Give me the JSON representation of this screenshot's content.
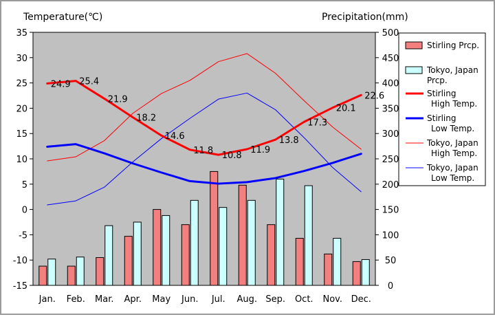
{
  "chart_data": {
    "type": "bar+line",
    "categories": [
      "Jan.",
      "Feb.",
      "Mar.",
      "Apr.",
      "May",
      "Jun.",
      "Jul.",
      "Aug.",
      "Sep.",
      "Oct.",
      "Nov.",
      "Dec."
    ],
    "left_axis": {
      "label": "Temperature(℃)",
      "range": [
        -15,
        35
      ],
      "ticks": [
        -15,
        -10,
        -5,
        0,
        5,
        10,
        15,
        20,
        25,
        30,
        35
      ]
    },
    "right_axis": {
      "label": "Precipitation(mm)",
      "range": [
        0,
        500
      ],
      "ticks": [
        0,
        50,
        100,
        150,
        200,
        250,
        300,
        350,
        400,
        450,
        500
      ]
    },
    "grid": false,
    "legend_position": "right",
    "bar_series": [
      {
        "name": "Stirling Prcp.",
        "color": "#f47f7f",
        "values": [
          38,
          38,
          55,
          97,
          150,
          120,
          225,
          198,
          120,
          93,
          62,
          47
        ]
      },
      {
        "name": "Tokyo, Japan Prcp.",
        "color": "#ccffff",
        "values": [
          52,
          56,
          118,
          125,
          138,
          168,
          154,
          168,
          210,
          197,
          93,
          51
        ]
      }
    ],
    "line_series": [
      {
        "name": "Stirling High Temp.",
        "color": "#ff0000",
        "width": 3,
        "values": [
          24.9,
          25.4,
          21.9,
          18.2,
          14.6,
          11.8,
          10.8,
          11.9,
          13.8,
          17.3,
          20.1,
          22.6
        ]
      },
      {
        "name": "Stirling Low Temp.",
        "color": "#0000ff",
        "width": 3,
        "values": [
          12.4,
          12.9,
          11.1,
          9.1,
          7.3,
          5.6,
          5.1,
          5.4,
          6.2,
          7.6,
          9.2,
          11.0
        ]
      },
      {
        "name": "Tokyo, Japan High Temp.",
        "color": "#ff0000",
        "width": 1,
        "values": [
          9.6,
          10.4,
          13.6,
          19.0,
          22.9,
          25.5,
          29.2,
          30.8,
          26.9,
          21.5,
          16.3,
          11.9
        ]
      },
      {
        "name": "Tokyo, Japan Low Temp.",
        "color": "#0000ff",
        "width": 1,
        "values": [
          0.9,
          1.7,
          4.4,
          9.4,
          14.0,
          18.0,
          21.8,
          23.0,
          19.7,
          14.2,
          8.3,
          3.5
        ]
      }
    ],
    "data_labels": {
      "series": "Stirling High Temp.",
      "texts": [
        "24.9",
        "25.4",
        "21.9",
        "18.2",
        "14.6",
        "11.8",
        "10.8",
        "11.9",
        "13.8",
        "17.3",
        "20.1",
        "22.6"
      ]
    },
    "legend": [
      {
        "lines": [
          "Stirling Prcp."
        ],
        "kind": "bar",
        "color": "#f47f7f"
      },
      {
        "lines": [
          "Tokyo, Japan",
          "Prcp."
        ],
        "kind": "bar",
        "color": "#ccffff"
      },
      {
        "lines": [
          "Stirling",
          "High Temp."
        ],
        "kind": "line",
        "color": "#ff0000",
        "width": 3
      },
      {
        "lines": [
          "Stirling",
          "Low Temp."
        ],
        "kind": "line",
        "color": "#0000ff",
        "width": 3
      },
      {
        "lines": [
          "Tokyo, Japan",
          "High Temp."
        ],
        "kind": "line",
        "color": "#ff0000",
        "width": 1
      },
      {
        "lines": [
          "Tokyo, Japan",
          "Low Temp."
        ],
        "kind": "line",
        "color": "#0000ff",
        "width": 1
      }
    ],
    "plot_background": "#c0c0c0"
  }
}
